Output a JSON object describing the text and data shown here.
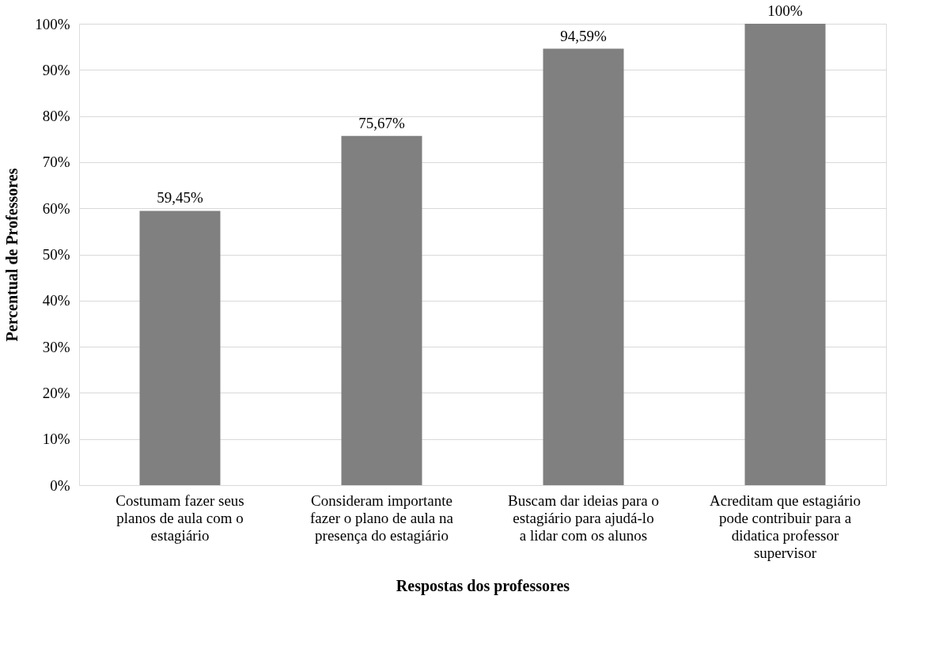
{
  "chart_data": {
    "type": "bar",
    "xlabel": "Respostas dos professores",
    "ylabel": "Percentual de Professores",
    "categories": [
      "Costumam fazer seus planos de aula com o estagiário",
      "Consideram importante fazer o plano de aula na presença do estagiário",
      "Buscam dar ideias para o estagiário para ajudá-lo a lidar com os alunos",
      "Acreditam que estagiário pode contribuir para a didatica professor supervisor"
    ],
    "values": [
      59.45,
      75.67,
      94.59,
      100
    ],
    "value_labels": [
      "59,45%",
      "75,67%",
      "94,59%",
      "100%"
    ],
    "color": "#808080",
    "ylim": [
      0,
      100
    ],
    "yticks": [
      {
        "value": 0,
        "label": "0%"
      },
      {
        "value": 10,
        "label": "10%"
      },
      {
        "value": 20,
        "label": "20%"
      },
      {
        "value": 30,
        "label": "30%"
      },
      {
        "value": 40,
        "label": "40%"
      },
      {
        "value": 50,
        "label": "50%"
      },
      {
        "value": 60,
        "label": "60%"
      },
      {
        "value": 70,
        "label": "70%"
      },
      {
        "value": 80,
        "label": "80%"
      },
      {
        "value": 90,
        "label": "90%"
      },
      {
        "value": 100,
        "label": "100%"
      }
    ],
    "grid": "y"
  }
}
